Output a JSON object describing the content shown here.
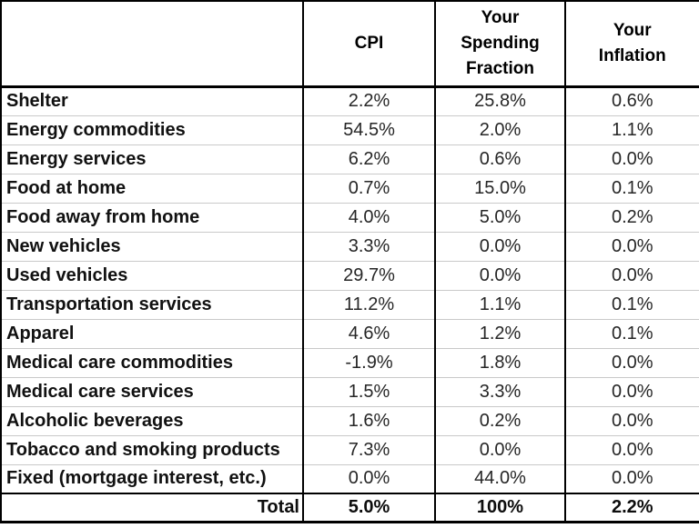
{
  "colors": {
    "border_strong": "#000000",
    "row_separator": "#c9c9c9",
    "label_text": "#111111",
    "value_text": "#262626",
    "background": "#ffffff"
  },
  "table": {
    "columns": [
      "",
      "CPI",
      "Your Spending Fraction",
      "Your Inflation"
    ],
    "rows": [
      {
        "label": "Shelter",
        "cpi": "2.2%",
        "spending_fraction": "25.8%",
        "inflation": "0.6%"
      },
      {
        "label": "Energy commodities",
        "cpi": "54.5%",
        "spending_fraction": "2.0%",
        "inflation": "1.1%"
      },
      {
        "label": "Energy services",
        "cpi": "6.2%",
        "spending_fraction": "0.6%",
        "inflation": "0.0%"
      },
      {
        "label": "Food at home",
        "cpi": "0.7%",
        "spending_fraction": "15.0%",
        "inflation": "0.1%"
      },
      {
        "label": "Food away from home",
        "cpi": "4.0%",
        "spending_fraction": "5.0%",
        "inflation": "0.2%"
      },
      {
        "label": "New vehicles",
        "cpi": "3.3%",
        "spending_fraction": "0.0%",
        "inflation": "0.0%"
      },
      {
        "label": "Used vehicles",
        "cpi": "29.7%",
        "spending_fraction": "0.0%",
        "inflation": "0.0%"
      },
      {
        "label": "Transportation services",
        "cpi": "11.2%",
        "spending_fraction": "1.1%",
        "inflation": "0.1%"
      },
      {
        "label": "Apparel",
        "cpi": "4.6%",
        "spending_fraction": "1.2%",
        "inflation": "0.1%"
      },
      {
        "label": "Medical care commodities",
        "cpi": "-1.9%",
        "spending_fraction": "1.8%",
        "inflation": "0.0%"
      },
      {
        "label": "Medical care services",
        "cpi": "1.5%",
        "spending_fraction": "3.3%",
        "inflation": "0.0%"
      },
      {
        "label": "Alcoholic beverages",
        "cpi": "1.6%",
        "spending_fraction": "0.2%",
        "inflation": "0.0%"
      },
      {
        "label": "Tobacco and smoking products",
        "cpi": "7.3%",
        "spending_fraction": "0.0%",
        "inflation": "0.0%"
      },
      {
        "label": "Fixed (mortgage interest, etc.)",
        "cpi": "0.0%",
        "spending_fraction": "44.0%",
        "inflation": "0.0%"
      }
    ],
    "total": {
      "label": "Total",
      "cpi": "5.0%",
      "spending_fraction": "100%",
      "inflation": "2.2%"
    }
  },
  "chart_data": {
    "type": "table",
    "title": "",
    "columns": [
      "",
      "CPI",
      "Your Spending Fraction",
      "Your Inflation"
    ],
    "rows": [
      [
        "Shelter",
        "2.2%",
        "25.8%",
        "0.6%"
      ],
      [
        "Energy commodities",
        "54.5%",
        "2.0%",
        "1.1%"
      ],
      [
        "Energy services",
        "6.2%",
        "0.6%",
        "0.0%"
      ],
      [
        "Food at home",
        "0.7%",
        "15.0%",
        "0.1%"
      ],
      [
        "Food away from home",
        "4.0%",
        "5.0%",
        "0.2%"
      ],
      [
        "New vehicles",
        "3.3%",
        "0.0%",
        "0.0%"
      ],
      [
        "Used vehicles",
        "29.7%",
        "0.0%",
        "0.0%"
      ],
      [
        "Transportation services",
        "11.2%",
        "1.1%",
        "0.1%"
      ],
      [
        "Apparel",
        "4.6%",
        "1.2%",
        "0.1%"
      ],
      [
        "Medical care commodities",
        "-1.9%",
        "1.8%",
        "0.0%"
      ],
      [
        "Medical care services",
        "1.5%",
        "3.3%",
        "0.0%"
      ],
      [
        "Alcoholic beverages",
        "1.6%",
        "0.2%",
        "0.0%"
      ],
      [
        "Tobacco and smoking products",
        "7.3%",
        "0.0%",
        "0.0%"
      ],
      [
        "Fixed (mortgage interest, etc.)",
        "0.0%",
        "44.0%",
        "0.0%"
      ],
      [
        "Total",
        "5.0%",
        "100%",
        "2.2%"
      ]
    ]
  }
}
